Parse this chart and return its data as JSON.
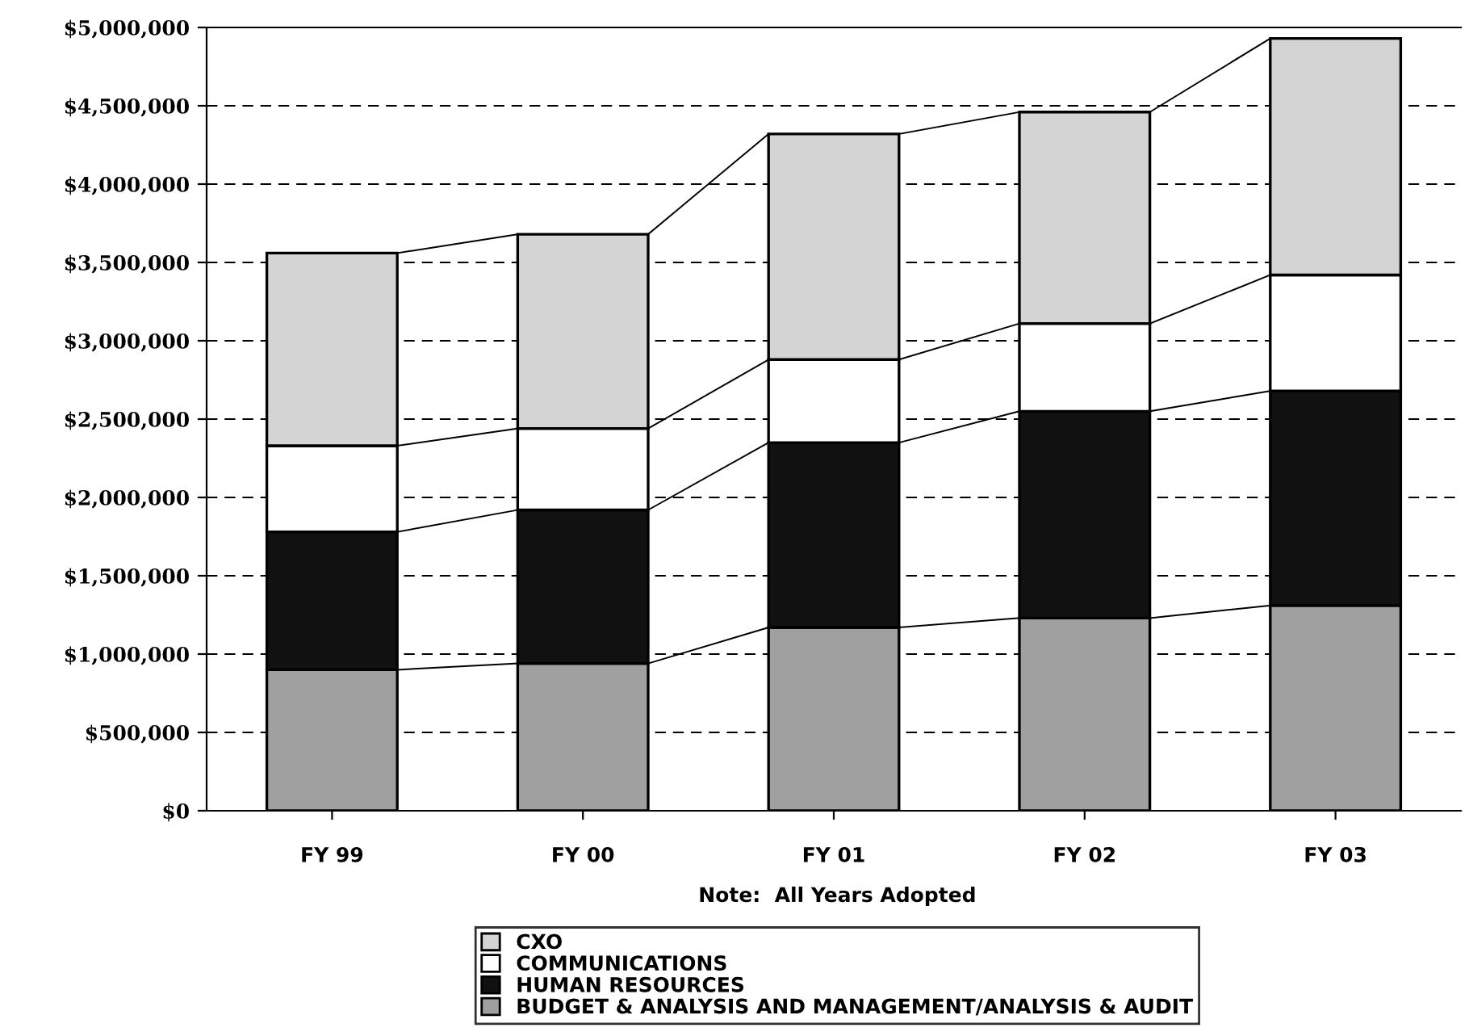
{
  "chart_data": {
    "type": "bar",
    "stacked": true,
    "categories": [
      "FY 99",
      "FY 00",
      "FY 01",
      "FY 02",
      "FY 03"
    ],
    "series": [
      {
        "name": "BUDGET & ANALYSIS AND MANAGEMENT/ANALYSIS & AUDIT",
        "color": "#a0a0a0",
        "values": [
          900000,
          940000,
          1170000,
          1230000,
          1310000
        ]
      },
      {
        "name": "HUMAN RESOURCES",
        "color": "#111111",
        "values": [
          880000,
          980000,
          1180000,
          1320000,
          1370000
        ]
      },
      {
        "name": "COMMUNICATIONS",
        "color": "#ffffff",
        "values": [
          550000,
          520000,
          530000,
          560000,
          740000
        ]
      },
      {
        "name": "CXO",
        "color": "#d4d4d4",
        "values": [
          1230000,
          1240000,
          1440000,
          1350000,
          1510000
        ]
      }
    ],
    "ylim": [
      0,
      5000000
    ],
    "yticks": [
      {
        "value": 0,
        "label": "$0"
      },
      {
        "value": 500000,
        "label": "$500,000"
      },
      {
        "value": 1000000,
        "label": "$1,000,000"
      },
      {
        "value": 1500000,
        "label": "$1,500,000"
      },
      {
        "value": 2000000,
        "label": "$2,000,000"
      },
      {
        "value": 2500000,
        "label": "$2,500,000"
      },
      {
        "value": 3000000,
        "label": "$3,000,000"
      },
      {
        "value": 3500000,
        "label": "$3,500,000"
      },
      {
        "value": 4000000,
        "label": "$4,000,000"
      },
      {
        "value": 4500000,
        "label": "$4,500,000"
      },
      {
        "value": 5000000,
        "label": "$5,000,000"
      }
    ],
    "grid": "y",
    "line_style": "dashed",
    "legend": "bottom",
    "annotations": [
      "Note:  All Years Adopted"
    ]
  }
}
